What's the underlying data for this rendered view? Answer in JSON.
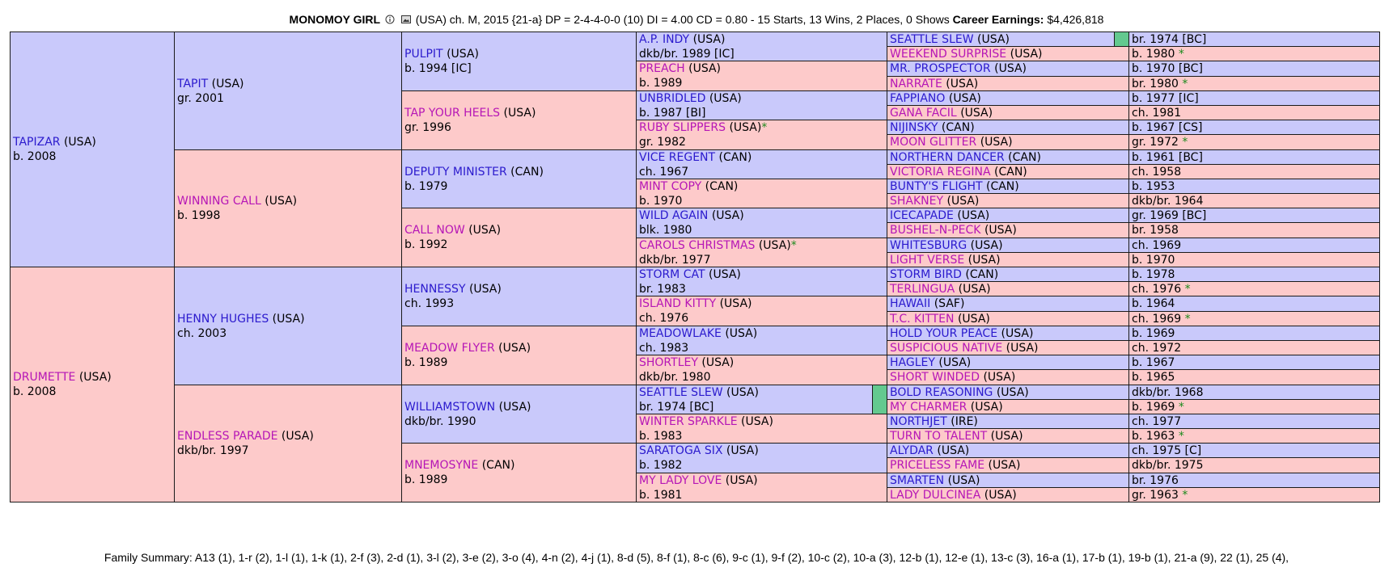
{
  "header": {
    "name": "MONOMOY GIRL",
    "info_icon": "info-circle-icon",
    "image_icon": "photo-icon",
    "details": "(USA) ch. M, 2015 {21-a} DP = 2-4-4-0-0 (10) DI = 4.00   CD = 0.80 - 15 Starts, 13 Wins, 2 Places, 0 Shows",
    "earnings_label": "Career Earnings:",
    "earnings_value": "$4,426,818"
  },
  "colors": {
    "male_bg": "#c9c9fb",
    "female_bg": "#fdcaca",
    "male_link": "#2b1acd",
    "female_link": "#b616b6",
    "star": "#1d8a1d",
    "marker": "#63c98f"
  },
  "pedigree": {
    "gen1": [
      {
        "sex": "m",
        "name": "TAPIZAR",
        "country": "(USA)",
        "star": "",
        "detail": "b. 2008"
      },
      {
        "sex": "f",
        "name": "DRUMETTE",
        "country": "(USA)",
        "star": "",
        "detail": "b. 2008"
      }
    ],
    "gen2": [
      {
        "sex": "m",
        "name": "TAPIT",
        "country": "(USA)",
        "star": "",
        "detail": "gr. 2001"
      },
      {
        "sex": "f",
        "name": "WINNING CALL",
        "country": "(USA)",
        "star": "",
        "detail": "b. 1998"
      },
      {
        "sex": "m",
        "name": "HENNY HUGHES",
        "country": "(USA)",
        "star": "",
        "detail": "ch. 2003"
      },
      {
        "sex": "f",
        "name": "ENDLESS PARADE",
        "country": "(USA)",
        "star": "",
        "detail": "dkb/br. 1997"
      }
    ],
    "gen3": [
      {
        "sex": "m",
        "name": "PULPIT",
        "country": "(USA)",
        "star": "",
        "detail": "b. 1994 [IC]"
      },
      {
        "sex": "f",
        "name": "TAP YOUR HEELS",
        "country": "(USA)",
        "star": "",
        "detail": "gr. 1996"
      },
      {
        "sex": "m",
        "name": "DEPUTY MINISTER",
        "country": "(CAN)",
        "star": "",
        "detail": "b. 1979"
      },
      {
        "sex": "f",
        "name": "CALL NOW",
        "country": "(USA)",
        "star": "",
        "detail": "b. 1992"
      },
      {
        "sex": "m",
        "name": "HENNESSY",
        "country": "(USA)",
        "star": "",
        "detail": "ch. 1993"
      },
      {
        "sex": "f",
        "name": "MEADOW FLYER",
        "country": "(USA)",
        "star": "",
        "detail": "b. 1989"
      },
      {
        "sex": "m",
        "name": "WILLIAMSTOWN",
        "country": "(USA)",
        "star": "",
        "detail": "dkb/br. 1990"
      },
      {
        "sex": "f",
        "name": "MNEMOSYNE",
        "country": "(CAN)",
        "star": "",
        "detail": "b. 1989"
      }
    ],
    "gen4": [
      {
        "sex": "m",
        "name": "A.P. INDY",
        "country": "(USA)",
        "star": "",
        "detail": "dkb/br. 1989 [IC]",
        "marker": false
      },
      {
        "sex": "f",
        "name": "PREACH",
        "country": "(USA)",
        "star": "",
        "detail": "b. 1989",
        "marker": false
      },
      {
        "sex": "m",
        "name": "UNBRIDLED",
        "country": "(USA)",
        "star": "",
        "detail": "b. 1987 [BI]",
        "marker": false
      },
      {
        "sex": "f",
        "name": "RUBY SLIPPERS",
        "country": "(USA)",
        "star": "*",
        "detail": "gr. 1982",
        "marker": false
      },
      {
        "sex": "m",
        "name": "VICE REGENT",
        "country": "(CAN)",
        "star": "",
        "detail": "ch. 1967",
        "marker": false
      },
      {
        "sex": "f",
        "name": "MINT COPY",
        "country": "(CAN)",
        "star": "",
        "detail": "b. 1970",
        "marker": false
      },
      {
        "sex": "m",
        "name": "WILD AGAIN",
        "country": "(USA)",
        "star": "",
        "detail": "blk. 1980",
        "marker": false
      },
      {
        "sex": "f",
        "name": "CAROLS CHRISTMAS",
        "country": "(USA)",
        "star": "*",
        "detail": "dkb/br. 1977",
        "marker": false
      },
      {
        "sex": "m",
        "name": "STORM CAT",
        "country": "(USA)",
        "star": "",
        "detail": "br. 1983",
        "marker": false
      },
      {
        "sex": "f",
        "name": "ISLAND KITTY",
        "country": "(USA)",
        "star": "",
        "detail": "ch. 1976",
        "marker": false
      },
      {
        "sex": "m",
        "name": "MEADOWLAKE",
        "country": "(USA)",
        "star": "",
        "detail": "ch. 1983",
        "marker": false
      },
      {
        "sex": "f",
        "name": "SHORTLEY",
        "country": "(USA)",
        "star": "",
        "detail": "dkb/br. 1980",
        "marker": false
      },
      {
        "sex": "m",
        "name": "SEATTLE SLEW",
        "country": "(USA)",
        "star": "",
        "detail": "br. 1974 [BC]",
        "marker": true
      },
      {
        "sex": "f",
        "name": "WINTER SPARKLE",
        "country": "(USA)",
        "star": "",
        "detail": "b. 1983",
        "marker": false
      },
      {
        "sex": "m",
        "name": "SARATOGA SIX",
        "country": "(USA)",
        "star": "",
        "detail": "b. 1982",
        "marker": false
      },
      {
        "sex": "f",
        "name": "MY LADY LOVE",
        "country": "(USA)",
        "star": "",
        "detail": "b. 1981",
        "marker": false
      }
    ],
    "gen5": [
      {
        "sex": "m",
        "name": "SEATTLE SLEW",
        "country": "(USA)",
        "star": "",
        "detail": "br. 1974 [BC]",
        "marker": true
      },
      {
        "sex": "f",
        "name": "WEEKEND SURPRISE",
        "country": "(USA)",
        "star": "",
        "detail": "b. 1980 *",
        "marker": false
      },
      {
        "sex": "m",
        "name": "MR. PROSPECTOR",
        "country": "(USA)",
        "star": "",
        "detail": "b. 1970 [BC]",
        "marker": false
      },
      {
        "sex": "f",
        "name": "NARRATE",
        "country": "(USA)",
        "star": "",
        "detail": "br. 1980 *",
        "marker": false
      },
      {
        "sex": "m",
        "name": "FAPPIANO",
        "country": "(USA)",
        "star": "",
        "detail": "b. 1977 [IC]",
        "marker": false
      },
      {
        "sex": "f",
        "name": "GANA FACIL",
        "country": "(USA)",
        "star": "",
        "detail": "ch. 1981",
        "marker": false
      },
      {
        "sex": "m",
        "name": "NIJINSKY",
        "country": "(CAN)",
        "star": "",
        "detail": "b. 1967 [CS]",
        "marker": false
      },
      {
        "sex": "f",
        "name": "MOON GLITTER",
        "country": "(USA)",
        "star": "",
        "detail": "gr. 1972 *",
        "marker": false
      },
      {
        "sex": "m",
        "name": "NORTHERN DANCER",
        "country": "(CAN)",
        "star": "",
        "detail": "b. 1961 [BC]",
        "marker": false
      },
      {
        "sex": "f",
        "name": "VICTORIA REGINA",
        "country": "(CAN)",
        "star": "",
        "detail": "ch. 1958",
        "marker": false
      },
      {
        "sex": "m",
        "name": "BUNTY'S FLIGHT",
        "country": "(CAN)",
        "star": "",
        "detail": "b. 1953",
        "marker": false
      },
      {
        "sex": "f",
        "name": "SHAKNEY",
        "country": "(USA)",
        "star": "",
        "detail": "dkb/br. 1964",
        "marker": false
      },
      {
        "sex": "m",
        "name": "ICECAPADE",
        "country": "(USA)",
        "star": "",
        "detail": "gr. 1969 [BC]",
        "marker": false
      },
      {
        "sex": "f",
        "name": "BUSHEL-N-PECK",
        "country": "(USA)",
        "star": "",
        "detail": "br. 1958",
        "marker": false
      },
      {
        "sex": "m",
        "name": "WHITESBURG",
        "country": "(USA)",
        "star": "",
        "detail": "ch. 1969",
        "marker": false
      },
      {
        "sex": "f",
        "name": "LIGHT VERSE",
        "country": "(USA)",
        "star": "",
        "detail": "b. 1970",
        "marker": false
      },
      {
        "sex": "m",
        "name": "STORM BIRD",
        "country": "(CAN)",
        "star": "",
        "detail": "b. 1978",
        "marker": false
      },
      {
        "sex": "f",
        "name": "TERLINGUA",
        "country": "(USA)",
        "star": "",
        "detail": "ch. 1976 *",
        "marker": false
      },
      {
        "sex": "m",
        "name": "HAWAII",
        "country": "(SAF)",
        "star": "",
        "detail": "b. 1964",
        "marker": false
      },
      {
        "sex": "f",
        "name": "T.C. KITTEN",
        "country": "(USA)",
        "star": "",
        "detail": "ch. 1969 *",
        "marker": false
      },
      {
        "sex": "m",
        "name": "HOLD YOUR PEACE",
        "country": "(USA)",
        "star": "",
        "detail": "b. 1969",
        "marker": false
      },
      {
        "sex": "f",
        "name": "SUSPICIOUS NATIVE",
        "country": "(USA)",
        "star": "",
        "detail": "ch. 1972",
        "marker": false
      },
      {
        "sex": "m",
        "name": "HAGLEY",
        "country": "(USA)",
        "star": "",
        "detail": "b. 1967",
        "marker": false
      },
      {
        "sex": "f",
        "name": "SHORT WINDED",
        "country": "(USA)",
        "star": "",
        "detail": "b. 1965",
        "marker": false
      },
      {
        "sex": "m",
        "name": "BOLD REASONING",
        "country": "(USA)",
        "star": "",
        "detail": "dkb/br. 1968",
        "marker": false
      },
      {
        "sex": "f",
        "name": "MY CHARMER",
        "country": "(USA)",
        "star": "",
        "detail": "b. 1969 *",
        "marker": false
      },
      {
        "sex": "m",
        "name": "NORTHJET",
        "country": "(IRE)",
        "star": "",
        "detail": "ch. 1977",
        "marker": false
      },
      {
        "sex": "f",
        "name": "TURN TO TALENT",
        "country": "(USA)",
        "star": "",
        "detail": "b. 1963 *",
        "marker": false
      },
      {
        "sex": "m",
        "name": "ALYDAR",
        "country": "(USA)",
        "star": "",
        "detail": "ch. 1975 [C]",
        "marker": false
      },
      {
        "sex": "f",
        "name": "PRICELESS FAME",
        "country": "(USA)",
        "star": "",
        "detail": "dkb/br. 1975",
        "marker": false
      },
      {
        "sex": "m",
        "name": "SMARTEN",
        "country": "(USA)",
        "star": "",
        "detail": "br. 1976",
        "marker": false
      },
      {
        "sex": "f",
        "name": "LADY DULCINEA",
        "country": "(USA)",
        "star": "",
        "detail": "gr. 1963 *",
        "marker": false
      }
    ]
  },
  "footer": {
    "text": "Family Summary: A13 (1), 1-r (2), 1-l (1), 1-k (1), 2-f (3), 2-d (1), 3-l (2), 3-e (2), 3-o (4), 4-n (2), 4-j (1), 8-d (5), 8-f (1), 8-c (6), 9-c (1), 9-f (2), 10-c (2), 10-a (3), 12-b (1), 12-e (1), 13-c (3), 16-a (1), 17-b (1), 19-b (1), 21-a (9), 22 (1), 25 (4),"
  }
}
